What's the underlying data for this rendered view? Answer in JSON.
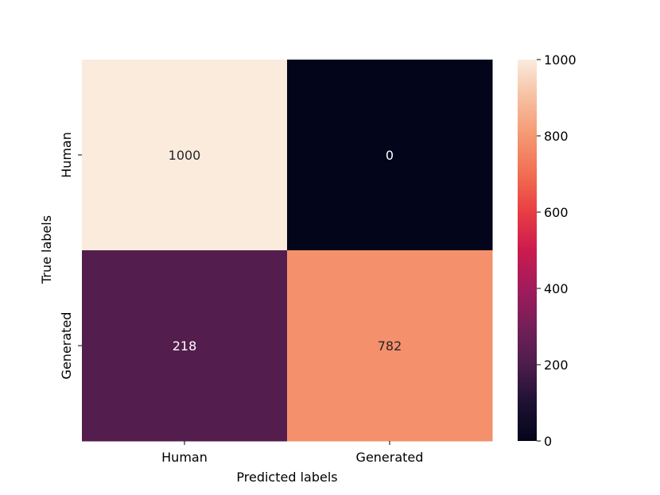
{
  "chart_data": {
    "type": "heatmap",
    "title": "",
    "xlabel": "Predicted labels",
    "ylabel": "True labels",
    "x_categories": [
      "Human",
      "Generated"
    ],
    "y_categories": [
      "Human",
      "Generated"
    ],
    "values": [
      [
        1000,
        0
      ],
      [
        218,
        782
      ]
    ],
    "colorbar": {
      "min": 0,
      "max": 1000,
      "ticks": [
        0,
        200,
        400,
        600,
        800,
        1000
      ],
      "tick_labels": [
        "0",
        "200",
        "400",
        "600",
        "800",
        "1000"
      ],
      "colormap": "rocket",
      "placement": "right"
    }
  }
}
